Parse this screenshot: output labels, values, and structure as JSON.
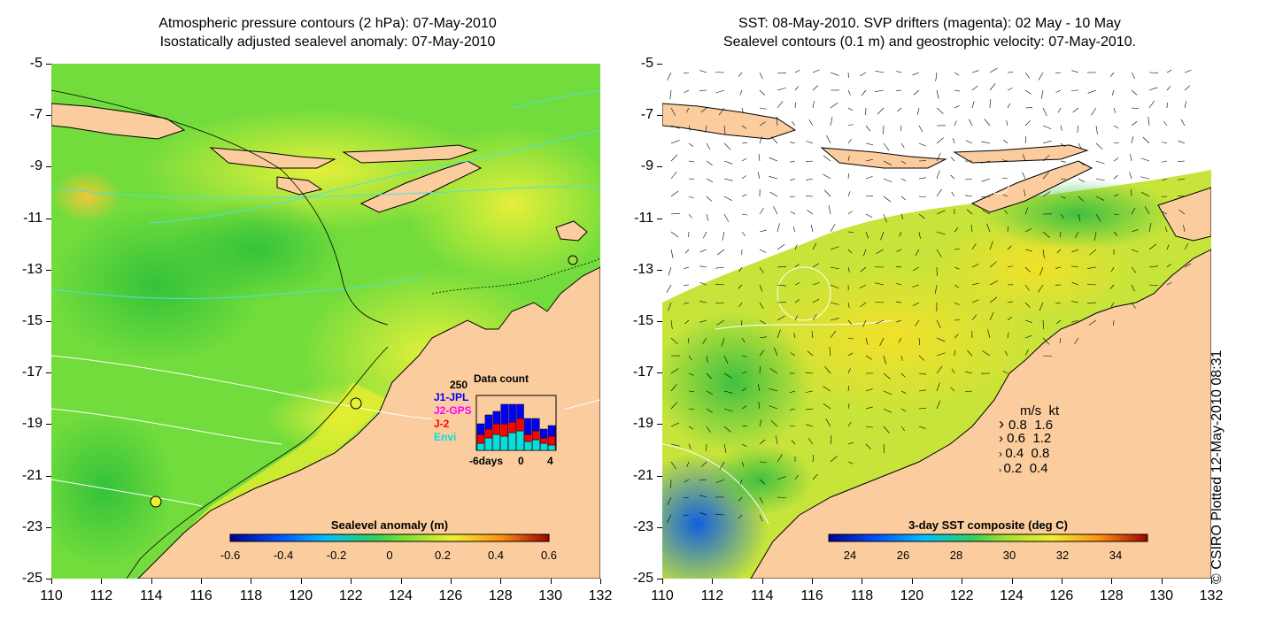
{
  "titles": {
    "left_line1": "Atmospheric pressure contours (2 hPa): 07-May-2010",
    "left_line2": "Isostatically adjusted sealevel anomaly: 07-May-2010",
    "right_line1": "SST: 08-May-2010. SVP drifters (magenta): 02 May - 10 May",
    "right_line2": "Sealevel contours (0.1 m) and geostrophic velocity: 07-May-2010."
  },
  "axes": {
    "y_ticks": [
      "-5",
      "-7",
      "-9",
      "-11",
      "-13",
      "-15",
      "-17",
      "-19",
      "-21",
      "-23",
      "-25"
    ],
    "x_ticks": [
      "110",
      "112",
      "114",
      "116",
      "118",
      "120",
      "122",
      "124",
      "126",
      "128",
      "130",
      "132"
    ],
    "lat_range": [
      -25,
      -5
    ],
    "lon_range": [
      110,
      132
    ]
  },
  "left_colorbar": {
    "title": "Sealevel anomaly (m)",
    "labels": [
      "-0.6",
      "-0.4",
      "-0.2",
      "0",
      "0.2",
      "0.4",
      "0.6"
    ]
  },
  "right_colorbar": {
    "title": "3-day SST composite (deg C)",
    "labels": [
      "24",
      "26",
      "28",
      "30",
      "32",
      "34"
    ]
  },
  "data_count": {
    "title": "Data count",
    "max_label": "250",
    "missions": [
      {
        "name": "J1-JPL",
        "color": "#0000ff"
      },
      {
        "name": "J2-GPS",
        "color": "#ff00ff"
      },
      {
        "name": "J-2",
        "color": "#ff0000"
      },
      {
        "name": "Envi",
        "color": "#00e0e0"
      }
    ],
    "x_labels": [
      "-6days",
      "0",
      "4"
    ]
  },
  "speed_legend": {
    "header_ms": "m/s",
    "header_kt": "kt",
    "rows": [
      {
        "ms": "0.8",
        "kt": "1.6"
      },
      {
        "ms": "0.6",
        "kt": "1.2"
      },
      {
        "ms": "0.4",
        "kt": "0.8"
      },
      {
        "ms": "0.2",
        "kt": "0.4"
      }
    ]
  },
  "credit": "© CSIRO Plotted 12-May-2010 08:31",
  "colors": {
    "land": "#fbcd9e",
    "ocean_left": "#6ee03a",
    "ocean_right": "#c7e83a"
  }
}
